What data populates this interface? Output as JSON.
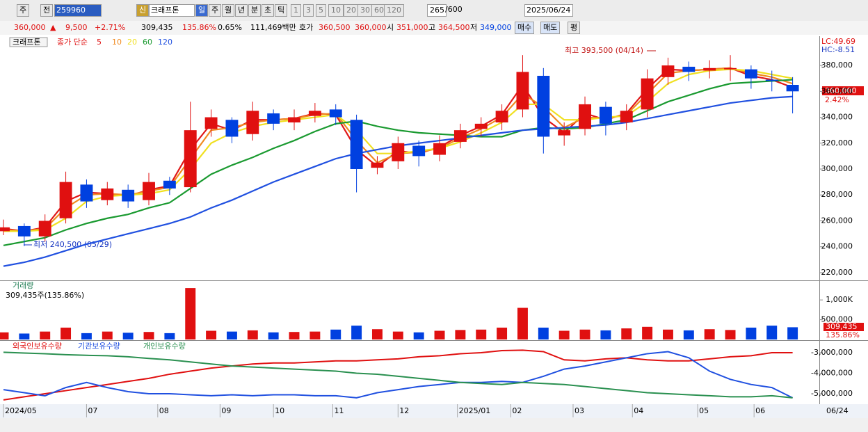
{
  "toolbar": {
    "row1": [
      "주",
      "전",
      "259960",
      "신",
      "크래프톤",
      "일",
      "주",
      "월",
      "년",
      "분",
      "초",
      "틱",
      "1",
      "3",
      "5",
      "10",
      "20",
      "30",
      "60",
      "120",
      "265",
      "/600",
      "2025/06/24"
    ],
    "row2": [
      "360,000",
      "▲",
      "9,500",
      "+2.71%",
      "309,435",
      "135.86%",
      "0.65%",
      "111,469백만",
      "호가",
      "360,500",
      "360,000",
      "시",
      "351,000",
      "고",
      "364,500",
      "저",
      "349,000",
      "매수",
      "매도",
      "평"
    ]
  },
  "chart_data": [
    {
      "type": "candlestick",
      "symbol": "크래프톤",
      "legend_title": "종가 단순",
      "up_color": "#e01010",
      "down_color": "#0040e0",
      "x": [
        0,
        7,
        14,
        21,
        28,
        35,
        42,
        49,
        56,
        63,
        70,
        77,
        84,
        91,
        98,
        105,
        112,
        119,
        126,
        133,
        140,
        147,
        154,
        161,
        168,
        175,
        182,
        189,
        196,
        203,
        210,
        217,
        224,
        231,
        238,
        245,
        252,
        259,
        266
      ],
      "open": [
        252000,
        256000,
        248000,
        262000,
        288000,
        276000,
        284000,
        276000,
        291000,
        286000,
        331000,
        338000,
        327000,
        343000,
        336000,
        341000,
        346000,
        338000,
        301000,
        306000,
        318000,
        311000,
        321000,
        331000,
        336000,
        346000,
        372000,
        326000,
        331000,
        348000,
        336000,
        346000,
        371000,
        379000,
        376000,
        377000,
        377000,
        369000,
        365000
      ],
      "high": [
        261000,
        258000,
        265000,
        298000,
        292000,
        290000,
        288000,
        297000,
        294000,
        352000,
        346000,
        340000,
        352000,
        346000,
        346000,
        351000,
        350000,
        342000,
        310000,
        325000,
        322000,
        326000,
        335000,
        340000,
        350000,
        388000,
        378000,
        336000,
        356000,
        352000,
        350000,
        377000,
        386000,
        383000,
        384000,
        388000,
        380000,
        376000,
        371000
      ],
      "low": [
        249000,
        240500,
        244000,
        258000,
        270000,
        272000,
        270000,
        272000,
        280000,
        282000,
        325000,
        320000,
        322000,
        330000,
        330000,
        336000,
        334000,
        282000,
        296000,
        300000,
        302000,
        306000,
        316000,
        325000,
        330000,
        340000,
        312000,
        318000,
        326000,
        326000,
        330000,
        340000,
        365000,
        368000,
        370000,
        368000,
        362000,
        360000,
        343000
      ],
      "close": [
        255000,
        248000,
        260000,
        290000,
        275000,
        285000,
        275000,
        290000,
        285000,
        330000,
        340000,
        325000,
        345000,
        335000,
        340000,
        345000,
        340000,
        300000,
        305000,
        320000,
        310000,
        320000,
        330000,
        335000,
        345000,
        375000,
        325000,
        330000,
        350000,
        335000,
        345000,
        370000,
        380000,
        375000,
        378000,
        378000,
        370000,
        368000,
        360000
      ],
      "series": [
        {
          "name": "5",
          "color": "#e01818",
          "values": [
            254000,
            252000,
            255000,
            275000,
            282000,
            281000,
            279000,
            284000,
            287000,
            315000,
            335000,
            330000,
            338000,
            338000,
            339000,
            343000,
            342000,
            315000,
            302000,
            314000,
            312000,
            317000,
            326000,
            333000,
            342000,
            365000,
            340000,
            328000,
            343000,
            338000,
            343000,
            362000,
            377000,
            376000,
            377000,
            378000,
            372000,
            369000,
            363000
          ]
        },
        {
          "name": "10",
          "color": "#f08a20",
          "values": [
            253000,
            252000,
            254000,
            270000,
            280000,
            281000,
            280000,
            283000,
            286000,
            308000,
            330000,
            332000,
            336000,
            338000,
            339000,
            342000,
            343000,
            322000,
            305000,
            312000,
            313000,
            316000,
            324000,
            331000,
            340000,
            358000,
            348000,
            332000,
            340000,
            339000,
            342000,
            358000,
            374000,
            376000,
            377000,
            378000,
            374000,
            371000,
            366000
          ]
        },
        {
          "name": "20",
          "color": "#f0e020",
          "values": [
            252000,
            252000,
            253000,
            262000,
            275000,
            279000,
            280000,
            281000,
            284000,
            300000,
            320000,
            328000,
            333000,
            336000,
            338000,
            340000,
            342000,
            330000,
            312000,
            312000,
            314000,
            316000,
            321000,
            328000,
            336000,
            350000,
            350000,
            338000,
            338000,
            340000,
            341000,
            352000,
            366000,
            373000,
            376000,
            377000,
            376000,
            373000,
            370000
          ]
        },
        {
          "name": "60",
          "color": "#1a9a30",
          "values": [
            241000,
            244000,
            247000,
            253000,
            258000,
            262000,
            265000,
            270000,
            274000,
            285000,
            296000,
            303000,
            309000,
            316000,
            322000,
            329000,
            335000,
            337000,
            333000,
            330000,
            328000,
            327000,
            326000,
            325000,
            325000,
            330000,
            332000,
            331000,
            332000,
            335000,
            338000,
            345000,
            352000,
            357000,
            362000,
            366000,
            367000,
            368000,
            369000
          ]
        },
        {
          "name": "120",
          "color": "#2050e0",
          "values": [
            225000,
            228000,
            232000,
            237000,
            242000,
            246000,
            250000,
            254000,
            258000,
            263000,
            270000,
            276000,
            283000,
            290000,
            296000,
            302000,
            308000,
            312000,
            315000,
            318000,
            320000,
            322000,
            324000,
            326000,
            328000,
            330000,
            331000,
            332000,
            333000,
            334000,
            336000,
            339000,
            342000,
            345000,
            348000,
            351000,
            353000,
            355000,
            356000
          ]
        }
      ],
      "xlim": [
        0,
        275
      ],
      "ylim": [
        214600,
        402600
      ],
      "yticks": [
        {
          "value": 220000,
          "label": "220,000"
        },
        {
          "value": 240000,
          "label": "240,000"
        },
        {
          "value": 260000,
          "label": "260,000"
        },
        {
          "value": 280000,
          "label": "280,000"
        },
        {
          "value": 300000,
          "label": "300,000"
        },
        {
          "value": 320000,
          "label": "320,000"
        },
        {
          "value": 340000,
          "label": "340,000"
        },
        {
          "value": 360000,
          "label": "360,000"
        },
        {
          "value": 380000,
          "label": "380,000"
        }
      ],
      "annotations": [
        "최고 393,500 (04/14)",
        "최저 240,500 (05/29)",
        "LC:49.69",
        "HC:-8.51",
        "360,000",
        "2.42%"
      ]
    },
    {
      "type": "bar",
      "title": "거래량",
      "subtitle": "309,435주(135.86%)",
      "x": [
        0,
        7,
        14,
        21,
        28,
        35,
        42,
        49,
        56,
        63,
        70,
        77,
        84,
        91,
        98,
        105,
        112,
        119,
        126,
        133,
        140,
        147,
        154,
        161,
        168,
        175,
        182,
        189,
        196,
        203,
        210,
        217,
        224,
        231,
        238,
        245,
        252,
        259,
        266
      ],
      "values": [
        180000,
        150000,
        200000,
        300000,
        160000,
        200000,
        170000,
        190000,
        160000,
        1300000,
        220000,
        200000,
        230000,
        180000,
        190000,
        200000,
        250000,
        350000,
        260000,
        200000,
        180000,
        220000,
        240000,
        250000,
        300000,
        800000,
        300000,
        220000,
        250000,
        230000,
        280000,
        320000,
        250000,
        230000,
        260000,
        240000,
        300000,
        350000,
        309435
      ],
      "xlim": [
        0,
        275
      ],
      "ylim": [
        0,
        1460000
      ],
      "yticks": [
        {
          "value": 500000,
          "label": "500,000"
        },
        {
          "value": 1000000,
          "label": "1,000K"
        }
      ],
      "annotations": [
        "309,435",
        "135.86%"
      ]
    },
    {
      "type": "line",
      "x": [
        0,
        7,
        14,
        21,
        28,
        35,
        42,
        49,
        56,
        63,
        70,
        77,
        84,
        91,
        98,
        105,
        112,
        119,
        126,
        133,
        140,
        147,
        154,
        161,
        168,
        175,
        182,
        189,
        196,
        203,
        210,
        217,
        224,
        231,
        238,
        245,
        252,
        259,
        266
      ],
      "series": [
        {
          "name": "외국인보유수량",
          "color": "#e01010",
          "values": [
            -5300000,
            -5150000,
            -5000000,
            -4850000,
            -4700000,
            -4550000,
            -4400000,
            -4250000,
            -4050000,
            -3900000,
            -3750000,
            -3650000,
            -3550000,
            -3500000,
            -3500000,
            -3450000,
            -3400000,
            -3400000,
            -3350000,
            -3300000,
            -3200000,
            -3150000,
            -3050000,
            -3000000,
            -2900000,
            -2880000,
            -2950000,
            -3350000,
            -3400000,
            -3300000,
            -3250000,
            -3350000,
            -3400000,
            -3400000,
            -3300000,
            -3200000,
            -3150000,
            -3000000,
            -3000000
          ]
        },
        {
          "name": "기관보유수량",
          "color": "#2050e0",
          "values": [
            -4800000,
            -4950000,
            -5100000,
            -4700000,
            -4450000,
            -4700000,
            -4900000,
            -5000000,
            -5000000,
            -5050000,
            -5100000,
            -5050000,
            -5100000,
            -5050000,
            -5050000,
            -5100000,
            -5100000,
            -5200000,
            -4950000,
            -4800000,
            -4650000,
            -4550000,
            -4450000,
            -4450000,
            -4400000,
            -4450000,
            -4150000,
            -3800000,
            -3650000,
            -3450000,
            -3250000,
            -3050000,
            -2950000,
            -3250000,
            -3900000,
            -4300000,
            -4550000,
            -4700000,
            -5200000
          ]
        },
        {
          "name": "개인보유수량",
          "color": "#2a9050",
          "values": [
            -2980000,
            -3020000,
            -3050000,
            -3100000,
            -3130000,
            -3150000,
            -3200000,
            -3280000,
            -3350000,
            -3450000,
            -3550000,
            -3650000,
            -3700000,
            -3750000,
            -3800000,
            -3850000,
            -3900000,
            -4000000,
            -4050000,
            -4150000,
            -4250000,
            -4350000,
            -4450000,
            -4500000,
            -4550000,
            -4450000,
            -4500000,
            -4550000,
            -4650000,
            -4750000,
            -4850000,
            -4950000,
            -5000000,
            -5050000,
            -5100000,
            -5150000,
            -5150000,
            -5100000,
            -5200000
          ]
        }
      ],
      "xlim": [
        0,
        275
      ],
      "ylim": [
        -5475000,
        -2425000
      ],
      "yticks": [
        {
          "value": -3000000,
          "label": "-3,000,000"
        },
        {
          "value": -4000000,
          "label": "-4,000,000"
        },
        {
          "value": -5000000,
          "label": "-5,000,000"
        }
      ],
      "xticks": [
        {
          "value": 0,
          "label": "2024/05"
        },
        {
          "value": 28,
          "label": "07"
        },
        {
          "value": 52,
          "label": "08"
        },
        {
          "value": 73,
          "label": "09"
        },
        {
          "value": 91,
          "label": "10"
        },
        {
          "value": 111,
          "label": "11"
        },
        {
          "value": 133,
          "label": "12"
        },
        {
          "value": 153,
          "label": "2025/01"
        },
        {
          "value": 171,
          "label": "02"
        },
        {
          "value": 192,
          "label": "03"
        },
        {
          "value": 212,
          "label": "04"
        },
        {
          "value": 234,
          "label": "05"
        },
        {
          "value": 253,
          "label": "06"
        }
      ],
      "end_label": "06/24"
    }
  ]
}
